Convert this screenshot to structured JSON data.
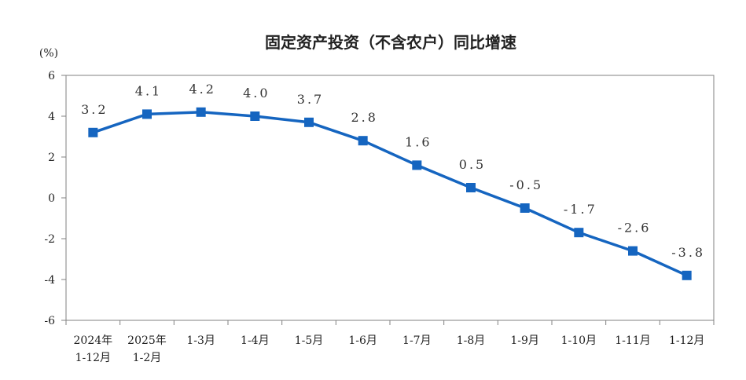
{
  "chart_data": {
    "type": "line",
    "title": "固定资产投资（不含农户）同比增速",
    "unit_label": "(%)",
    "categories": [
      [
        "2024年",
        "1-12月"
      ],
      [
        "2025年",
        "1-2月"
      ],
      [
        "1-3月"
      ],
      [
        "1-4月"
      ],
      [
        "1-5月"
      ],
      [
        "1-6月"
      ],
      [
        "1-7月"
      ],
      [
        "1-8月"
      ],
      [
        "1-9月"
      ],
      [
        "1-10月"
      ],
      [
        "1-11月"
      ],
      [
        "1-12月"
      ]
    ],
    "values": [
      3.2,
      4.1,
      4.2,
      4.0,
      3.7,
      2.8,
      1.6,
      0.5,
      -0.5,
      -1.7,
      -2.6,
      -3.8
    ],
    "data_labels": [
      "3.2",
      "4.1",
      "4.2",
      "4.0",
      "3.7",
      "2.8",
      "1.6",
      "0.5",
      "-0.5",
      "-1.7",
      "-2.6",
      "-3.8"
    ],
    "ylim": [
      -6,
      6
    ],
    "yticks": [
      6,
      4,
      2,
      0,
      -2,
      -4,
      -6
    ],
    "ytick_labels": [
      "6",
      "4",
      "2",
      "0",
      "-2",
      "-4",
      "-6"
    ],
    "xlabel": "",
    "ylabel": "",
    "grid": false,
    "colors": {
      "line": "#1565c0",
      "marker": "#1565c0",
      "axis": "#808080"
    }
  }
}
